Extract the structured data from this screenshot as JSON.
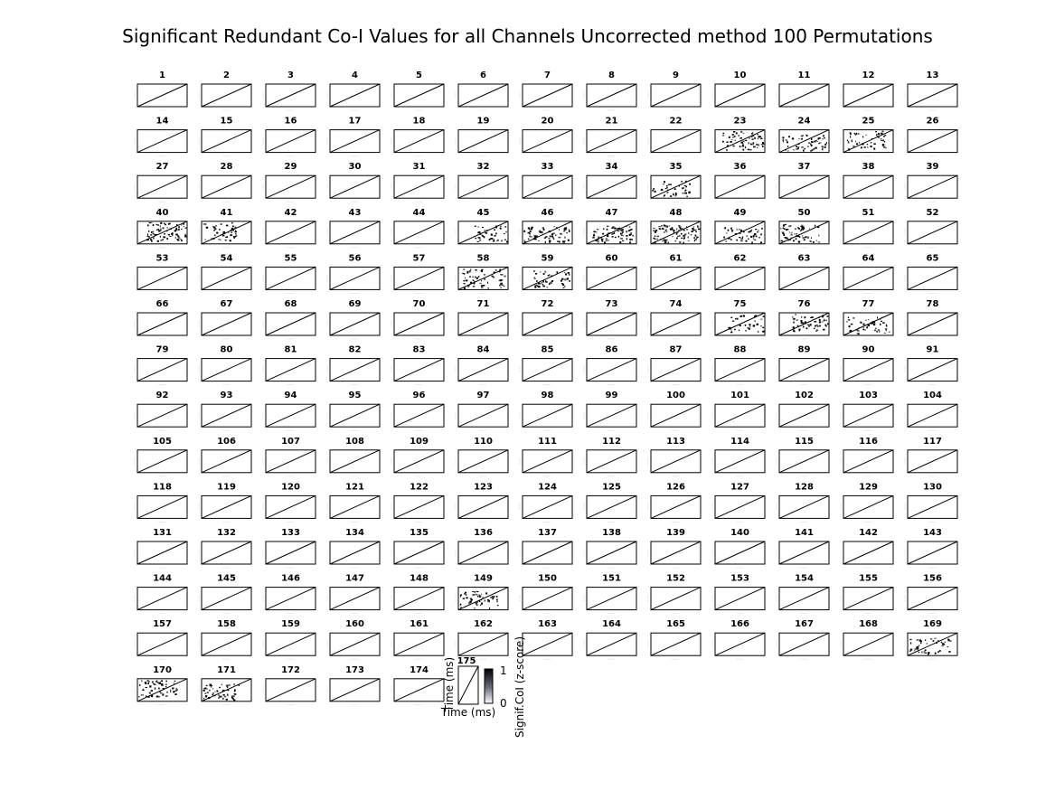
{
  "chart_data": {
    "type": "heatmap",
    "title": "Significant Redundant Co-I Values for all Channels Uncorrected method 100 Permutations",
    "channel_count": 175,
    "columns_per_row": 13,
    "significant_channels": [
      23,
      24,
      25,
      35,
      40,
      41,
      45,
      46,
      47,
      48,
      49,
      50,
      58,
      59,
      75,
      76,
      77,
      149,
      169,
      170,
      171
    ],
    "significance_density": {
      "23": 0.35,
      "24": 0.35,
      "25": 0.25,
      "35": 0.3,
      "40": 0.55,
      "41": 0.35,
      "45": 0.3,
      "46": 0.45,
      "47": 0.6,
      "48": 0.55,
      "49": 0.4,
      "50": 0.45,
      "58": 0.3,
      "59": 0.3,
      "75": 0.2,
      "76": 0.35,
      "77": 0.3,
      "149": 0.3,
      "169": 0.3,
      "170": 0.45,
      "171": 0.4
    },
    "colorbar": {
      "label": "Signif.CoI (z-score)",
      "min": 0,
      "max": 1,
      "tick_labels": [
        "1",
        "0"
      ]
    },
    "inset_axes": {
      "channel": "175",
      "xlabel": "Time (ms)",
      "ylabel": "Time (ms)"
    }
  }
}
